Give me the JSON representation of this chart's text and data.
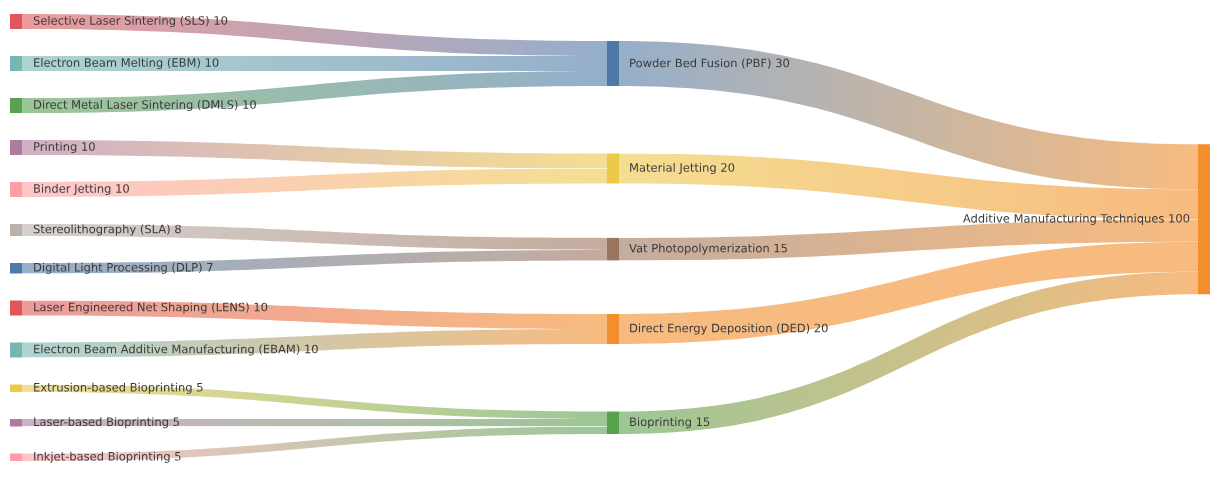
{
  "chart_data": [
    {
      "type": "other",
      "categories": [
        "Selective Laser Sintering (SLS)",
        "Electron Beam Melting (EBM)",
        "Direct Metal Laser Sintering (DMLS)",
        "Printing",
        "Binder Jetting",
        "Stereolithography (SLA)",
        "Digital Light Processing (DLP)",
        "Laser Engineered Net Shaping (LENS)",
        "Electron Beam Additive Manufacturing (EBAM)",
        "Extrusion-based Bioprinting",
        "Laser-based Bioprinting",
        "Inkjet-based Bioprinting"
      ],
      "values": [
        10,
        10,
        10,
        10,
        10,
        8,
        7,
        10,
        10,
        5,
        5,
        5
      ],
      "value_labels": [
        "10",
        "10",
        "10",
        "10",
        "10",
        "8",
        "7",
        "10",
        "10",
        "5",
        "5",
        "5"
      ],
      "colors": [
        "#e15759",
        "#76b7b2",
        "#59a14f",
        "#b07aa1",
        "#ff9da7",
        "#bab0ac",
        "#4e79a7",
        "#e15759",
        "#76b7b2",
        "#edc948",
        "#b07aa1",
        "#ff9da7"
      ]
    },
    {
      "type": "other",
      "categories": [
        "Powder Bed Fusion (PBF)",
        "Material Jetting",
        "Vat Photopolymerization",
        "Direct Energy Deposition (DED)",
        "Bioprinting"
      ],
      "values": [
        30,
        20,
        15,
        20,
        15
      ],
      "value_labels": [
        "30",
        "20",
        "15",
        "20",
        "15"
      ],
      "colors": [
        "#4e79a7",
        "#edc948",
        "#9c755f",
        "#f28e2b",
        "#59a14f"
      ],
      "totals": [
        "100"
      ],
      "annotations": [
        "Additive Manufacturing Techniques"
      ],
      "color": "#f28e2b"
    }
  ]
}
